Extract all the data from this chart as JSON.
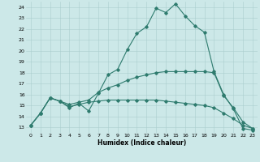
{
  "xlabel": "Humidex (Indice chaleur)",
  "bg_color": "#cce8e8",
  "line_color": "#2e7b6e",
  "grid_color": "#aacece",
  "xlim": [
    -0.5,
    23.5
  ],
  "ylim": [
    12.5,
    24.5
  ],
  "xticks": [
    0,
    1,
    2,
    3,
    4,
    5,
    6,
    7,
    8,
    9,
    10,
    11,
    12,
    13,
    14,
    15,
    16,
    17,
    18,
    19,
    20,
    21,
    22,
    23
  ],
  "yticks": [
    13,
    14,
    15,
    16,
    17,
    18,
    19,
    20,
    21,
    22,
    23,
    24
  ],
  "series": [
    [
      13.2,
      14.3,
      15.7,
      15.4,
      14.8,
      15.2,
      14.5,
      16.1,
      17.8,
      18.3,
      20.1,
      21.6,
      22.2,
      23.9,
      23.5,
      24.3,
      23.2,
      22.3,
      21.7,
      18.1,
      16.0,
      14.7,
      12.9,
      12.75
    ],
    [
      13.2,
      14.3,
      15.7,
      15.4,
      15.1,
      15.3,
      15.5,
      16.2,
      16.6,
      16.9,
      17.3,
      17.6,
      17.8,
      18.0,
      18.1,
      18.1,
      18.1,
      18.1,
      18.1,
      18.0,
      15.9,
      14.8,
      13.5,
      12.9
    ],
    [
      13.2,
      14.3,
      15.7,
      15.4,
      14.9,
      15.1,
      15.3,
      15.4,
      15.5,
      15.5,
      15.5,
      15.5,
      15.5,
      15.5,
      15.4,
      15.3,
      15.2,
      15.1,
      15.0,
      14.8,
      14.3,
      13.8,
      13.2,
      12.9
    ]
  ]
}
